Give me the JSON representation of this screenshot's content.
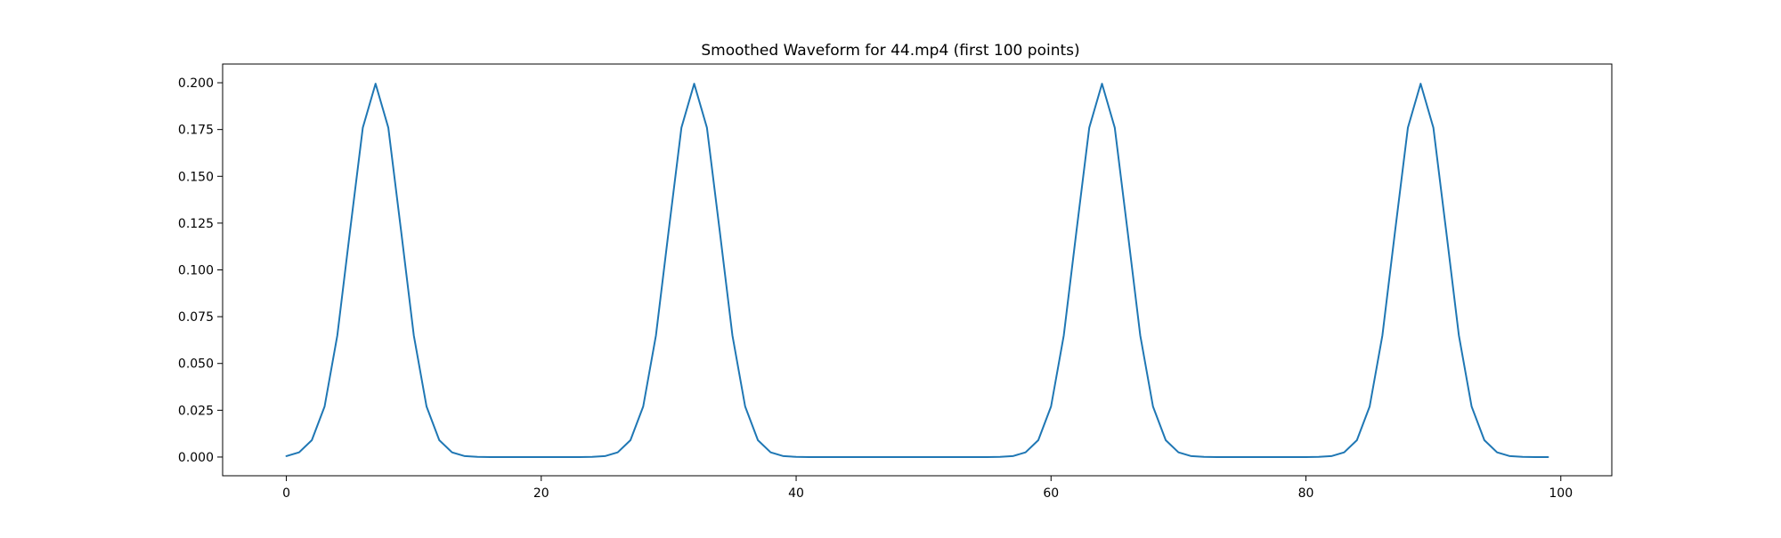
{
  "chart_data": {
    "type": "line",
    "title": "Smoothed Waveform for 44.mp4 (first 100 points)",
    "xlabel": "",
    "ylabel": "",
    "xlim": [
      -5,
      104
    ],
    "ylim": [
      -0.01,
      0.21
    ],
    "xticks": [
      0,
      20,
      40,
      60,
      80,
      100
    ],
    "xtick_labels": [
      "0",
      "20",
      "40",
      "60",
      "80",
      "100"
    ],
    "yticks": [
      0.0,
      0.025,
      0.05,
      0.075,
      0.1,
      0.125,
      0.15,
      0.175,
      0.2
    ],
    "ytick_labels": [
      "0.000",
      "0.025",
      "0.050",
      "0.075",
      "0.100",
      "0.125",
      "0.150",
      "0.175",
      "0.200"
    ],
    "grid": false,
    "line_color": "#1f77b4",
    "series": [
      {
        "x": [
          0,
          1,
          2,
          3,
          4,
          5,
          6,
          7,
          8,
          9,
          10,
          11,
          12,
          13,
          14,
          15,
          16,
          17,
          18,
          19,
          20,
          21,
          22,
          23,
          24,
          25,
          26,
          27,
          28,
          29,
          30,
          31,
          32,
          33,
          34,
          35,
          36,
          37,
          38,
          39,
          40,
          41,
          42,
          43,
          44,
          45,
          46,
          47,
          48,
          49,
          50,
          51,
          52,
          53,
          54,
          55,
          56,
          57,
          58,
          59,
          60,
          61,
          62,
          63,
          64,
          65,
          66,
          67,
          68,
          69,
          70,
          71,
          72,
          73,
          74,
          75,
          76,
          77,
          78,
          79,
          80,
          81,
          82,
          83,
          84,
          85,
          86,
          87,
          88,
          89,
          90,
          91,
          92,
          93,
          94,
          95,
          96,
          97,
          98,
          99
        ],
        "values": [
          0.0005,
          0.0025,
          0.009,
          0.027,
          0.065,
          0.121,
          0.176,
          0.1995,
          0.176,
          0.121,
          0.065,
          0.027,
          0.009,
          0.0025,
          0.0005,
          0.0001,
          0,
          0,
          0,
          0,
          0,
          0,
          0,
          0,
          0.0001,
          0.0005,
          0.0025,
          0.009,
          0.027,
          0.065,
          0.121,
          0.176,
          0.1995,
          0.176,
          0.121,
          0.065,
          0.027,
          0.009,
          0.0025,
          0.0005,
          0.0001,
          0,
          0,
          0,
          0,
          0,
          0,
          0,
          0,
          0,
          0,
          0,
          0,
          0,
          0,
          0,
          0.0001,
          0.0005,
          0.0025,
          0.009,
          0.027,
          0.065,
          0.121,
          0.176,
          0.1995,
          0.176,
          0.121,
          0.065,
          0.027,
          0.009,
          0.0025,
          0.0005,
          0.0001,
          0,
          0,
          0,
          0,
          0,
          0,
          0,
          0,
          0.0001,
          0.0005,
          0.0025,
          0.009,
          0.027,
          0.065,
          0.121,
          0.176,
          0.1995,
          0.176,
          0.121,
          0.065,
          0.027,
          0.009,
          0.0025,
          0.0005,
          0.0001,
          0,
          0
        ]
      }
    ]
  }
}
